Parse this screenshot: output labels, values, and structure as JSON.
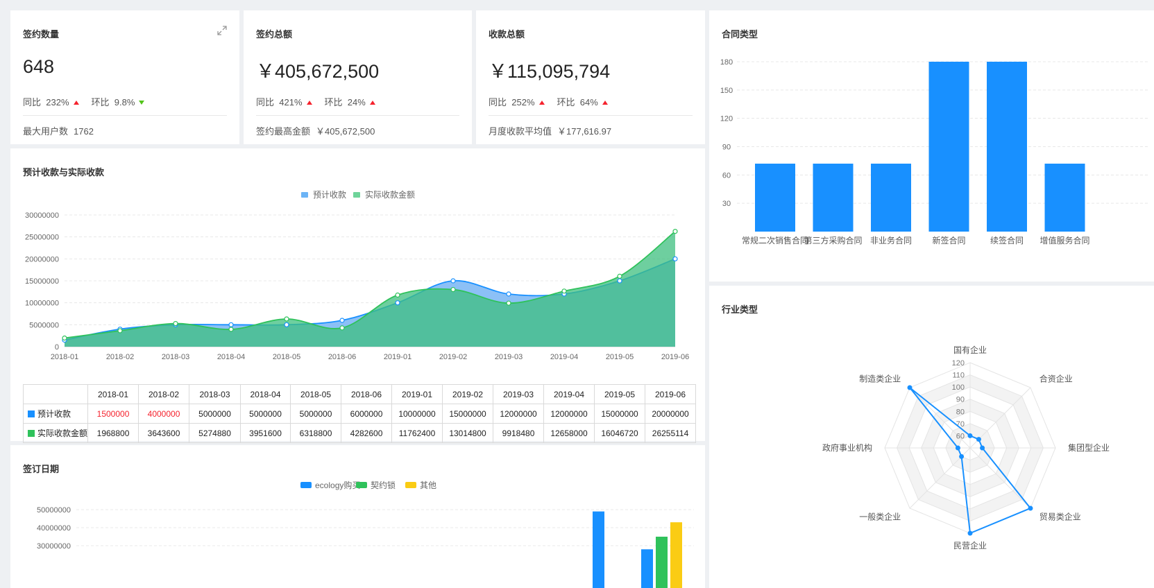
{
  "kpi": [
    {
      "title": "签约数量",
      "value": "648",
      "yoy_label": "同比",
      "yoy": "232%",
      "yoy_dir": "up",
      "mom_label": "环比",
      "mom": "9.8%",
      "mom_dir": "down",
      "foot_label": "最大用户数",
      "foot_value": "1762"
    },
    {
      "title": "签约总额",
      "value": "￥405,672,500",
      "yoy_label": "同比",
      "yoy": "421%",
      "yoy_dir": "up",
      "mom_label": "环比",
      "mom": "24%",
      "mom_dir": "up",
      "foot_label": "签约最高金额",
      "foot_value": "￥405,672,500"
    },
    {
      "title": "收款总额",
      "value": "￥115,095,794",
      "yoy_label": "同比",
      "yoy": "252%",
      "yoy_dir": "up",
      "mom_label": "环比",
      "mom": "64%",
      "mom_dir": "up",
      "foot_label": "月度收款平均值",
      "foot_value": "￥177,616.97"
    }
  ],
  "colors": {
    "blue": "#1890ff",
    "green": "#2fc25b",
    "yellow": "#facc14",
    "red": "#f5222d"
  },
  "area_card": {
    "title": "预计收款与实际收款",
    "table_rows": [
      {
        "name": "预计收款",
        "values": [
          "1500000",
          "4000000",
          "5000000",
          "5000000",
          "5000000",
          "6000000",
          "10000000",
          "15000000",
          "12000000",
          "12000000",
          "15000000",
          "20000000"
        ],
        "red_cells": [
          0,
          1
        ]
      },
      {
        "name": "实际收款金额",
        "values": [
          "1968800",
          "3643600",
          "5274880",
          "3951600",
          "6318800",
          "4282600",
          "11762400",
          "13014800",
          "9918480",
          "12658000",
          "16046720",
          "26255114"
        ],
        "red_cells": []
      }
    ]
  },
  "contract_card": {
    "title": "合同类型"
  },
  "industry_card": {
    "title": "行业类型"
  },
  "date_card": {
    "title": "签订日期"
  },
  "chart_data": [
    {
      "type": "area",
      "title": "",
      "categories": [
        "2018-01",
        "2018-02",
        "2018-03",
        "2018-04",
        "2018-05",
        "2018-06",
        "2019-01",
        "2019-02",
        "2019-03",
        "2019-04",
        "2019-05",
        "2019-06"
      ],
      "series": [
        {
          "name": "预计收款",
          "values": [
            1500000,
            4000000,
            5000000,
            5000000,
            5000000,
            6000000,
            10000000,
            15000000,
            12000000,
            12000000,
            15000000,
            20000000
          ]
        },
        {
          "name": "实际收款金额",
          "values": [
            1968800,
            3643600,
            5274880,
            3951600,
            6318800,
            4282600,
            11762400,
            13014800,
            9918480,
            12658000,
            16046720,
            26255114
          ]
        }
      ],
      "yticks": [
        "0",
        "5000000",
        "10000000",
        "15000000",
        "20000000",
        "25000000",
        "30000000"
      ],
      "ylim": [
        0,
        30000000
      ],
      "legend": "top"
    },
    {
      "type": "bar",
      "title": "",
      "categories": [
        "常规二次销售合同",
        "第三方采购合同",
        "非业务合同",
        "新签合同",
        "续签合同",
        "增值服务合同"
      ],
      "values": [
        72,
        72,
        72,
        180,
        180,
        72
      ],
      "yticks": [
        "30",
        "60",
        "90",
        "120",
        "150",
        "180"
      ],
      "ylim": [
        0,
        180
      ]
    },
    {
      "type": "radar",
      "title": "",
      "indicators": [
        "国有企业",
        "合资企业",
        "集团型企业",
        "贸易类企业",
        "民营企业",
        "一般类企业",
        "政府事业机构",
        "制造类企业"
      ],
      "values": [
        60,
        60,
        60,
        120,
        120,
        60,
        60,
        120
      ],
      "ticks": [
        "60",
        "70",
        "80",
        "90",
        "100",
        "110",
        "120"
      ],
      "range": [
        50,
        120
      ]
    },
    {
      "type": "bar",
      "title": "",
      "series": [
        {
          "name": "ecology购买",
          "values": [
            49000000,
            28000000
          ]
        },
        {
          "name": "契约锁",
          "values": [
            null,
            35000000
          ]
        },
        {
          "name": "其他",
          "values": [
            null,
            43000000
          ]
        }
      ],
      "yticks": [
        "30000000",
        "40000000",
        "50000000"
      ],
      "legend": "top"
    }
  ]
}
